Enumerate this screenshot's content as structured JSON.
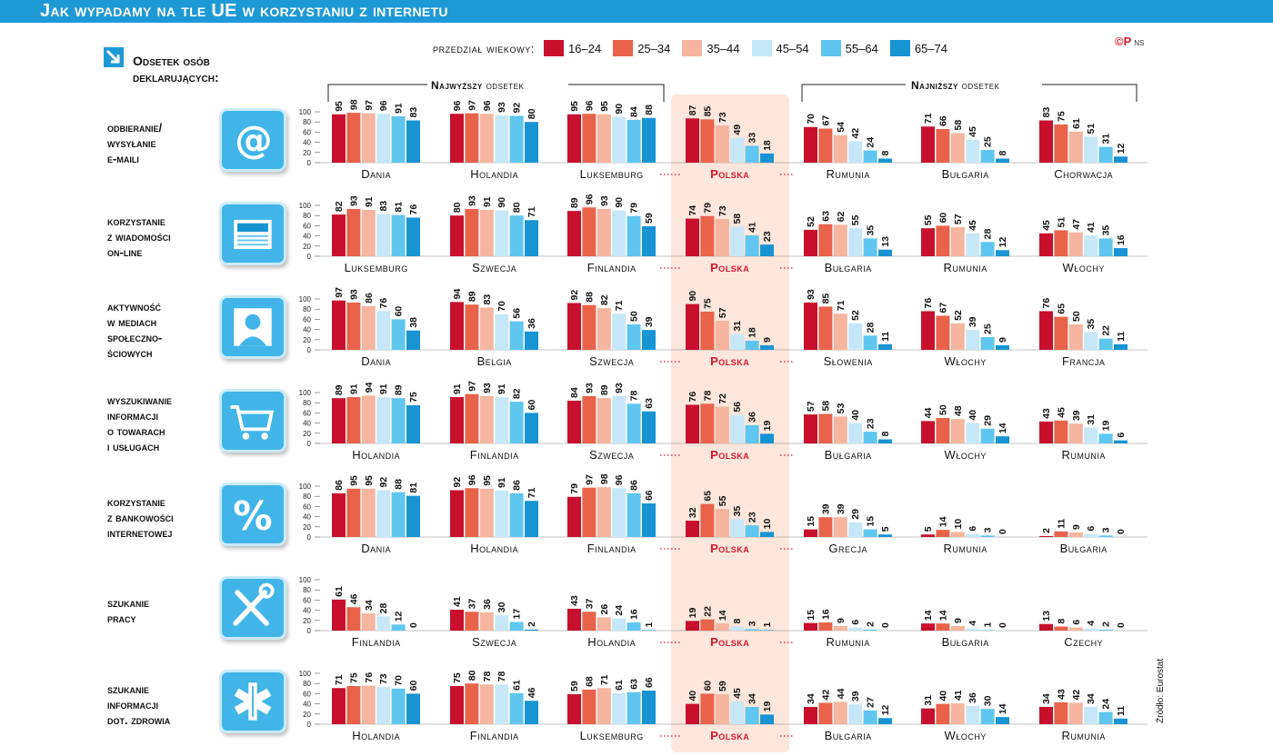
{
  "title": "Jak wypadamy na tle UE w korzystaniu z internetu",
  "intro": "Odsetek osób\ndeklarujących:",
  "legend_title": "przedział wiekowy:",
  "logo": "©P",
  "logo_small": "NS",
  "source": "Źródło: Eurostat",
  "highest_bold": "Najwyższy",
  "lowest_bold": "Najniższy",
  "group_suffix": " odsetek",
  "colors": [
    "#c8102e",
    "#e8634a",
    "#f5b59e",
    "#c6e7f8",
    "#5fc6ef",
    "#1894d3"
  ],
  "chart_data": {
    "type": "bar",
    "title": "Jak wypadamy na tle UE w korzystaniu z internetu",
    "ylabel": "Odsetek osób deklarujących (%)",
    "ylim": [
      0,
      100
    ],
    "yticks": [
      0,
      20,
      40,
      60,
      80,
      100
    ],
    "age_groups": [
      "16–24",
      "25–34",
      "35–44",
      "45–54",
      "55–64",
      "65–74"
    ],
    "rows": [
      {
        "label": "odbieranie/\nwysyłanie\ne-maili",
        "icon": "at-icon",
        "countries": [
          {
            "name": "Dania",
            "values": [
              95,
              98,
              97,
              96,
              91,
              83
            ]
          },
          {
            "name": "Holandia",
            "values": [
              96,
              97,
              96,
              93,
              92,
              80
            ]
          },
          {
            "name": "Luksemburg",
            "values": [
              95,
              96,
              95,
              90,
              84,
              88
            ]
          },
          {
            "name": "Polska",
            "values": [
              87,
              85,
              73,
              49,
              33,
              18
            ]
          },
          {
            "name": "Rumunia",
            "values": [
              70,
              67,
              54,
              42,
              24,
              8
            ]
          },
          {
            "name": "Bułgaria",
            "values": [
              71,
              66,
              58,
              45,
              25,
              8
            ]
          },
          {
            "name": "Chorwacja",
            "values": [
              83,
              75,
              61,
              51,
              31,
              12
            ]
          }
        ]
      },
      {
        "label": "korzystanie\nz wiadomości\non-line",
        "icon": "newspaper-icon",
        "countries": [
          {
            "name": "Luksemburg",
            "values": [
              82,
              93,
              91,
              83,
              81,
              76
            ]
          },
          {
            "name": "Szwecja",
            "values": [
              80,
              93,
              91,
              90,
              80,
              71
            ]
          },
          {
            "name": "Finlandia",
            "values": [
              89,
              96,
              93,
              90,
              79,
              59
            ]
          },
          {
            "name": "Polska",
            "values": [
              74,
              79,
              73,
              58,
              41,
              23
            ]
          },
          {
            "name": "Bułgaria",
            "values": [
              52,
              63,
              62,
              55,
              35,
              13
            ]
          },
          {
            "name": "Rumunia",
            "values": [
              55,
              60,
              57,
              45,
              28,
              12
            ]
          },
          {
            "name": "Włochy",
            "values": [
              45,
              51,
              47,
              41,
              35,
              16
            ]
          }
        ]
      },
      {
        "label": "aktywność\nw mediach\nspołeczno-\nściowych",
        "icon": "person-icon",
        "countries": [
          {
            "name": "Dania",
            "values": [
              97,
              93,
              86,
              76,
              60,
              38
            ]
          },
          {
            "name": "Belgia",
            "values": [
              94,
              89,
              83,
              70,
              56,
              36
            ]
          },
          {
            "name": "Szwecja",
            "values": [
              92,
              88,
              82,
              71,
              50,
              39
            ]
          },
          {
            "name": "Polska",
            "values": [
              90,
              75,
              57,
              31,
              18,
              9
            ]
          },
          {
            "name": "Słowenia",
            "values": [
              93,
              85,
              71,
              52,
              28,
              11
            ]
          },
          {
            "name": "Włochy",
            "values": [
              76,
              67,
              52,
              39,
              25,
              9
            ]
          },
          {
            "name": "Francja",
            "values": [
              76,
              65,
              50,
              35,
              22,
              11
            ]
          }
        ]
      },
      {
        "label": "wyszukiwanie\ninformacji\no towarach\ni usługach",
        "icon": "cart-icon",
        "countries": [
          {
            "name": "Holandia",
            "values": [
              89,
              91,
              94,
              91,
              89,
              75
            ]
          },
          {
            "name": "Finlandia",
            "values": [
              91,
              97,
              93,
              91,
              82,
              60
            ]
          },
          {
            "name": "Szwecja",
            "values": [
              84,
              93,
              89,
              93,
              78,
              63
            ]
          },
          {
            "name": "Polska",
            "values": [
              76,
              78,
              72,
              56,
              36,
              19
            ]
          },
          {
            "name": "Bułgaria",
            "values": [
              57,
              58,
              53,
              40,
              23,
              8
            ]
          },
          {
            "name": "Włochy",
            "values": [
              44,
              50,
              48,
              40,
              29,
              14
            ]
          },
          {
            "name": "Rumunia",
            "values": [
              43,
              45,
              39,
              31,
              19,
              6
            ]
          }
        ]
      },
      {
        "label": "korzystanie\nz bankowości\ninternetowej",
        "icon": "percent-icon",
        "countries": [
          {
            "name": "Dania",
            "values": [
              86,
              95,
              95,
              92,
              88,
              81
            ]
          },
          {
            "name": "Holandia",
            "values": [
              92,
              96,
              95,
              91,
              86,
              71
            ]
          },
          {
            "name": "Finlandia",
            "values": [
              79,
              97,
              98,
              96,
              86,
              66
            ]
          },
          {
            "name": "Polska",
            "values": [
              32,
              65,
              55,
              35,
              23,
              10
            ]
          },
          {
            "name": "Grecja",
            "values": [
              15,
              39,
              39,
              29,
              15,
              5
            ]
          },
          {
            "name": "Rumunia",
            "values": [
              5,
              14,
              10,
              6,
              3,
              0
            ]
          },
          {
            "name": "Bułgaria",
            "values": [
              2,
              11,
              9,
              6,
              3,
              0
            ]
          }
        ]
      },
      {
        "label": "szukanie\npracy",
        "icon": "tools-icon",
        "countries": [
          {
            "name": "Finlandia",
            "values": [
              61,
              46,
              34,
              28,
              12,
              0
            ]
          },
          {
            "name": "Szwecja",
            "values": [
              41,
              37,
              36,
              30,
              17,
              2
            ]
          },
          {
            "name": "Holandia",
            "values": [
              43,
              37,
              26,
              24,
              16,
              1
            ]
          },
          {
            "name": "Polska",
            "values": [
              19,
              22,
              14,
              8,
              3,
              1
            ]
          },
          {
            "name": "Rumunia",
            "values": [
              15,
              16,
              9,
              6,
              2,
              0
            ]
          },
          {
            "name": "Bułgaria",
            "values": [
              14,
              14,
              9,
              4,
              1,
              0
            ]
          },
          {
            "name": "Czechy",
            "values": [
              13,
              8,
              6,
              4,
              2,
              0
            ]
          }
        ]
      },
      {
        "label": "szukanie\ninformacji\ndot. zdrowia",
        "icon": "medical-icon",
        "countries": [
          {
            "name": "Holandia",
            "values": [
              71,
              75,
              76,
              73,
              70,
              60
            ]
          },
          {
            "name": "Finlandia",
            "values": [
              75,
              80,
              78,
              78,
              61,
              46
            ]
          },
          {
            "name": "Luksemburg",
            "values": [
              59,
              68,
              71,
              61,
              63,
              66
            ]
          },
          {
            "name": "Polska",
            "values": [
              40,
              60,
              59,
              45,
              34,
              19
            ]
          },
          {
            "name": "Bułgaria",
            "values": [
              34,
              42,
              44,
              39,
              27,
              12
            ]
          },
          {
            "name": "Włochy",
            "values": [
              31,
              40,
              41,
              36,
              30,
              14
            ]
          },
          {
            "name": "Rumunia",
            "values": [
              34,
              43,
              42,
              34,
              24,
              11
            ]
          }
        ]
      }
    ]
  }
}
